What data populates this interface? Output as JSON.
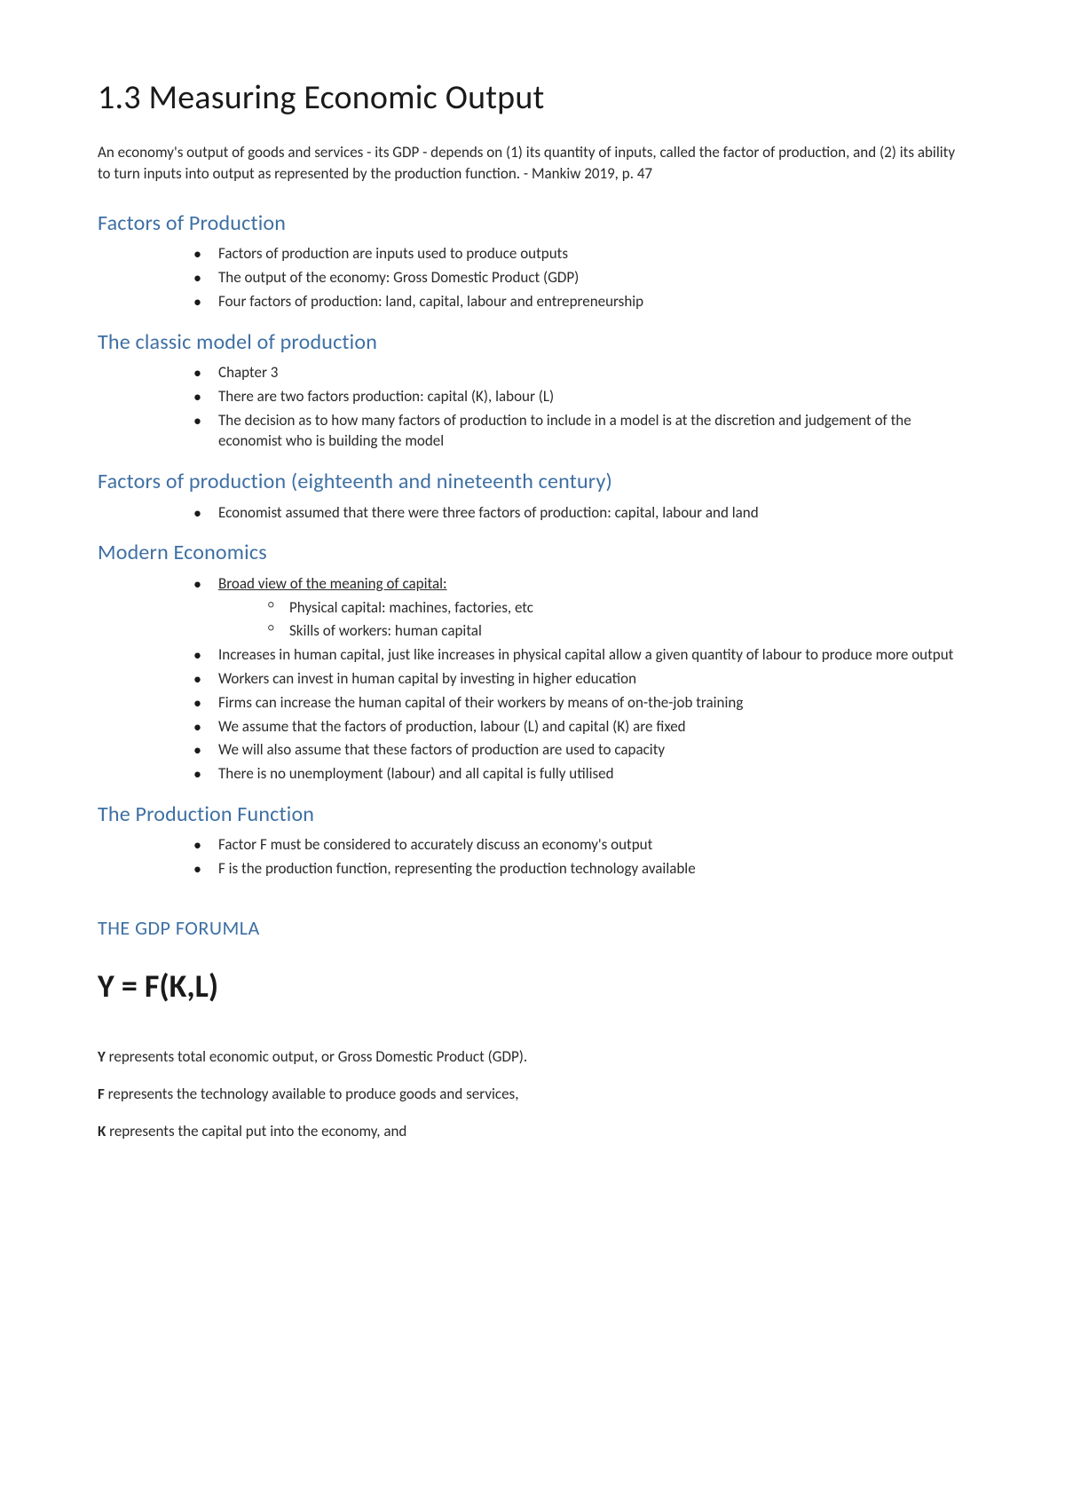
{
  "colors": {
    "heading_blue": "#3e6fa3",
    "text": "#2a2a2a",
    "background": "#ffffff"
  },
  "title": "1.3 Measuring Economic Output",
  "intro": "An economy's output of goods and services - its GDP - depends on (1) its quantity of inputs, called the factor of production, and (2) its ability to turn inputs into output as represented by the production function. - Mankiw 2019, p. 47",
  "sections": [
    {
      "heading": "Factors of Production",
      "bullets": [
        "Factors of production are inputs used to produce outputs",
        "The output of the economy: Gross Domestic Product (GDP)",
        "Four factors of production: land, capital, labour and entrepreneurship"
      ]
    },
    {
      "heading": "The classic model of production",
      "bullets": [
        "Chapter 3",
        "There are two factors production: capital (K), labour (L)",
        "The decision as to how many factors of production to include in a model is at the discretion and judgement of the economist who is building the model"
      ]
    },
    {
      "heading": "Factors of production (eighteenth and nineteenth century)",
      "bullets": [
        "Economist assumed that there were three factors of production: capital, labour and land"
      ]
    },
    {
      "heading": "Modern Economics",
      "modern": {
        "lead": "Broad view of the meaning of capital:",
        "subs": [
          "Physical capital: machines, factories, etc",
          "Skills of workers: human capital"
        ]
      },
      "bullets_rest": [
        "Increases in human capital, just like increases in physical capital allow a  given quantity of labour to produce more output",
        "Workers can invest in human capital by investing in higher education",
        "Firms can increase the human capital of their workers by means of on-the-job training",
        "We assume that the factors of production, labour (L) and capital (K) are fixed",
        "We will also assume that these factors of production are used to capacity",
        "There is no unemployment (labour) and all capital is fully utilised"
      ]
    },
    {
      "heading": "The Production Function",
      "bullets": [
        "Factor F must be considered to accurately discuss an economy's output",
        "F is the production function, representing the production technology available"
      ]
    }
  ],
  "gdp_heading": "THE GDP FORUMLA",
  "formula": "Y = F(K,L)",
  "defs": {
    "y": {
      "sym": "Y",
      "text": " represents total economic output, or Gross Domestic Product (GDP)."
    },
    "f": {
      "sym": "F",
      "text": " represents the technology available to produce goods and services,"
    },
    "k": {
      "sym": "K",
      "text": " represents the capital put into the economy, and"
    }
  }
}
